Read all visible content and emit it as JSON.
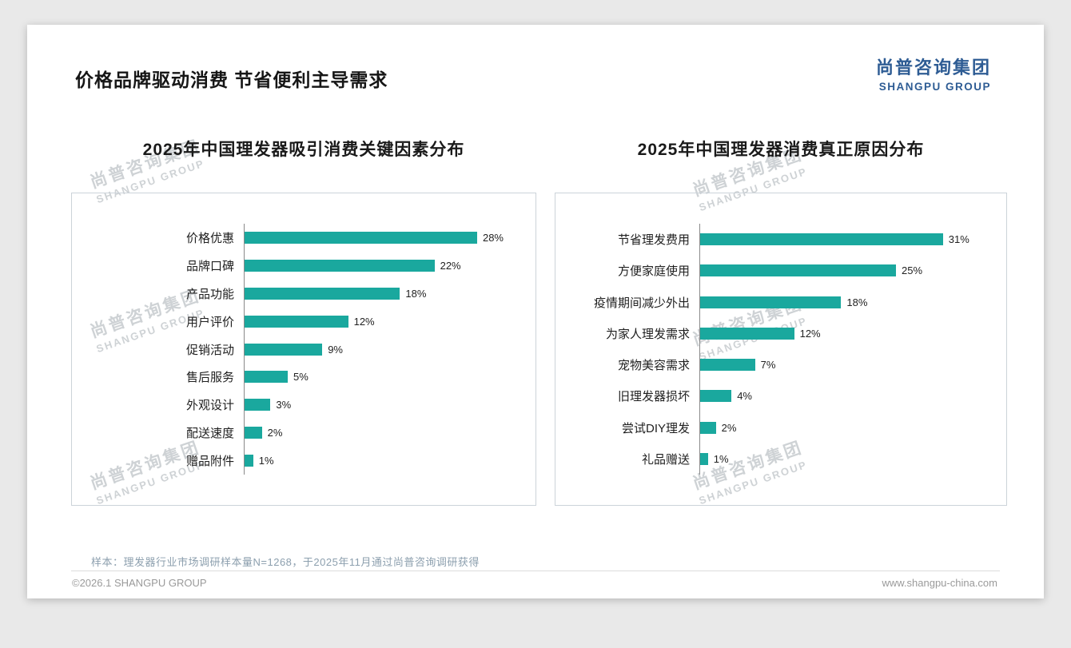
{
  "page": {
    "title": "价格品牌驱动消费 节省便利主导需求",
    "logo": {
      "cn": "尚普咨询集团",
      "en": "SHANGPU GROUP"
    },
    "watermark": {
      "cn": "尚普咨询集团",
      "en": "SHANGPU GROUP"
    },
    "footnote": "样本：理发器行业市场调研样本量N=1268，于2025年11月通过尚普咨询调研获得",
    "footer": {
      "left": "©2026.1 SHANGPU GROUP",
      "right": "www.shangpu-china.com"
    },
    "accent_color": "#1aa89e",
    "logo_color": "#2e5c94"
  },
  "chart_data": [
    {
      "type": "bar",
      "orientation": "horizontal",
      "title": "2025年中国理发器吸引消费关键因素分布",
      "categories": [
        "价格优惠",
        "品牌口碑",
        "产品功能",
        "用户评价",
        "促销活动",
        "售后服务",
        "外观设计",
        "配送速度",
        "赠品附件"
      ],
      "values": [
        28,
        22,
        18,
        12,
        9,
        5,
        3,
        2,
        1
      ],
      "unit": "%",
      "xlim": [
        0,
        30
      ],
      "grid": false,
      "legend": "none",
      "bar_color": "#1aa89e"
    },
    {
      "type": "bar",
      "orientation": "horizontal",
      "title": "2025年中国理发器消费真正原因分布",
      "categories": [
        "节省理发费用",
        "方便家庭使用",
        "疫情期间减少外出",
        "为家人理发需求",
        "宠物美容需求",
        "旧理发器损坏",
        "尝试DIY理发",
        "礼品赠送"
      ],
      "values": [
        31,
        25,
        18,
        12,
        7,
        4,
        2,
        1
      ],
      "unit": "%",
      "xlim": [
        0,
        35
      ],
      "grid": false,
      "legend": "none",
      "bar_color": "#1aa89e"
    }
  ]
}
